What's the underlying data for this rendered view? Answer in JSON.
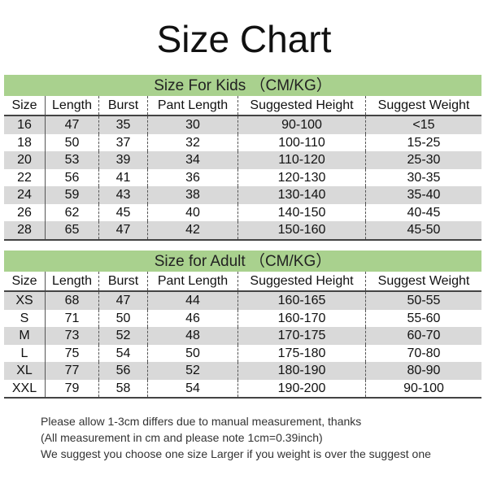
{
  "title": "Size Chart",
  "colors": {
    "band": "#a9d18e",
    "row_alt": "#d9d9d9"
  },
  "columns": [
    "Size",
    "Length",
    "Burst",
    "Pant Length",
    "Suggested Height",
    "Suggest Weight"
  ],
  "kids": {
    "heading": "Size For Kids （CM/KG）",
    "rows": [
      [
        "16",
        "47",
        "35",
        "30",
        "90-100",
        "<15"
      ],
      [
        "18",
        "50",
        "37",
        "32",
        "100-110",
        "15-25"
      ],
      [
        "20",
        "53",
        "39",
        "34",
        "110-120",
        "25-30"
      ],
      [
        "22",
        "56",
        "41",
        "36",
        "120-130",
        "30-35"
      ],
      [
        "24",
        "59",
        "43",
        "38",
        "130-140",
        "35-40"
      ],
      [
        "26",
        "62",
        "45",
        "40",
        "140-150",
        "40-45"
      ],
      [
        "28",
        "65",
        "47",
        "42",
        "150-160",
        "45-50"
      ]
    ]
  },
  "adult": {
    "heading": "Size for Adult （CM/KG）",
    "rows": [
      [
        "XS",
        "68",
        "47",
        "44",
        "160-165",
        "50-55"
      ],
      [
        "S",
        "71",
        "50",
        "46",
        "160-170",
        "55-60"
      ],
      [
        "M",
        "73",
        "52",
        "48",
        "170-175",
        "60-70"
      ],
      [
        "L",
        "75",
        "54",
        "50",
        "175-180",
        "70-80"
      ],
      [
        "XL",
        "77",
        "56",
        "52",
        "180-190",
        "80-90"
      ],
      [
        "XXL",
        "79",
        "58",
        "54",
        "190-200",
        "90-100"
      ]
    ]
  },
  "notes": [
    "Please allow 1-3cm differs due to manual measurement, thanks",
    "(All measurement in cm and please note 1cm=0.39inch)",
    "We suggest you choose one size Larger if you weight is over the suggest one"
  ]
}
